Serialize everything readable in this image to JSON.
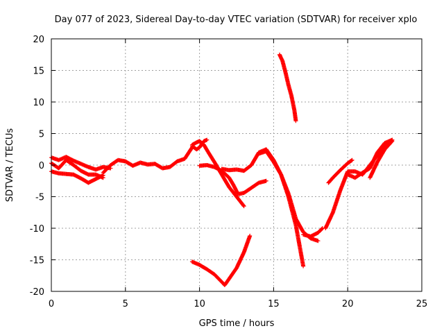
{
  "chart_data": {
    "type": "scatter",
    "title": "Day 077 of 2023, Sidereal Day-to-day VTEC variation (SDTVAR) for receiver xplo",
    "xlabel": "GPS time / hours",
    "ylabel": "SDTVAR / TECUs",
    "xlim": [
      0,
      25
    ],
    "ylim": [
      -20,
      20
    ],
    "x_ticks": [
      0,
      5,
      10,
      15,
      20,
      25
    ],
    "y_ticks": [
      -20,
      -15,
      -10,
      -5,
      0,
      5,
      10,
      15,
      20
    ],
    "x_tick_labels": [
      "0",
      "5",
      "10",
      "15",
      "20",
      "25"
    ],
    "y_tick_labels": [
      "-20",
      "-15",
      "-10",
      "-5",
      "0",
      "5",
      "10",
      "15",
      "20"
    ],
    "grid": true,
    "marker": "plus",
    "color": "#ff0000",
    "series": [
      {
        "x": [
          0.0,
          0.5,
          1.0,
          1.5,
          2.0,
          2.5,
          3.0,
          3.5,
          4.0
        ],
        "y": [
          1.2,
          0.8,
          1.3,
          0.7,
          0.2,
          -0.3,
          -0.7,
          -0.3,
          -0.5
        ]
      },
      {
        "x": [
          0.0,
          0.5,
          1.0,
          1.5,
          2.0,
          2.5,
          3.0,
          3.5
        ],
        "y": [
          0.3,
          -0.5,
          0.8,
          0.0,
          -0.9,
          -1.5,
          -1.5,
          -2.0
        ]
      },
      {
        "x": [
          0.0,
          0.5,
          1.0,
          1.5,
          2.0,
          2.5,
          3.0,
          3.5
        ],
        "y": [
          -1.0,
          -1.3,
          -1.4,
          -1.5,
          -2.1,
          -2.8,
          -2.2,
          -1.6
        ]
      },
      {
        "x": [
          3.5,
          4.0,
          4.5,
          5.0,
          5.5,
          6.0,
          6.5,
          7.0,
          7.5,
          8.0,
          8.5,
          9.0,
          9.5
        ],
        "y": [
          -1.2,
          0.0,
          0.8,
          0.6,
          -0.1,
          0.4,
          0.1,
          0.2,
          -0.5,
          -0.3,
          0.6,
          1.0,
          2.8
        ]
      },
      {
        "x": [
          9.5,
          9.8,
          10.0,
          10.3,
          10.6,
          11.0,
          11.5,
          12.0,
          12.5,
          13.0
        ],
        "y": [
          3.2,
          3.6,
          3.8,
          3.2,
          2.0,
          0.5,
          -1.5,
          -3.5,
          -5.0,
          -6.5
        ]
      },
      {
        "x": [
          9.5,
          9.8,
          10.0,
          10.3,
          10.5
        ],
        "y": [
          3.0,
          2.5,
          2.8,
          3.8,
          4.0
        ]
      },
      {
        "x": [
          10.0,
          10.5,
          11.0,
          11.5,
          12.0,
          12.3,
          12.6,
          13.0,
          13.5,
          14.0,
          14.5
        ],
        "y": [
          -0.1,
          0.0,
          -0.3,
          -0.9,
          -2.0,
          -3.2,
          -4.6,
          -4.4,
          -3.6,
          -2.8,
          -2.5
        ]
      },
      {
        "x": [
          11.5,
          12.0,
          12.5,
          13.0,
          13.5,
          14.0,
          14.5,
          15.0,
          15.5,
          16.0,
          16.5,
          17.0
        ],
        "y": [
          -0.6,
          -0.8,
          -0.7,
          -0.9,
          0.0,
          2.0,
          2.5,
          0.8,
          -1.5,
          -5.0,
          -9.5,
          -16.0
        ]
      },
      {
        "x": [
          14.0,
          14.5,
          15.0,
          15.5,
          16.0,
          16.5,
          17.0,
          17.5,
          18.0
        ],
        "y": [
          1.8,
          2.2,
          0.5,
          -1.5,
          -4.5,
          -8.5,
          -10.6,
          -11.6,
          -12.0
        ]
      },
      {
        "x": [
          17.0,
          17.5,
          18.0,
          18.3
        ],
        "y": [
          -11.0,
          -11.3,
          -10.7,
          -10.0
        ]
      },
      {
        "x": [
          9.5,
          10.0,
          10.5,
          11.0,
          11.5,
          11.7,
          12.0,
          12.5,
          13.0,
          13.4
        ],
        "y": [
          -15.3,
          -15.8,
          -16.5,
          -17.3,
          -18.5,
          -19.0,
          -18.0,
          -16.3,
          -13.8,
          -11.2
        ]
      },
      {
        "x": [
          15.4,
          15.6,
          15.8,
          16.0,
          16.2,
          16.4,
          16.5
        ],
        "y": [
          17.5,
          16.5,
          14.7,
          12.7,
          11.0,
          8.7,
          7.0
        ]
      },
      {
        "x": [
          18.5,
          19.0,
          19.5,
          20.0,
          20.5,
          21.0,
          21.5,
          22.0,
          22.5,
          23.0
        ],
        "y": [
          -10.0,
          -7.5,
          -4.0,
          -1.0,
          -1.0,
          -1.5,
          0.0,
          1.5,
          3.0,
          4.0
        ]
      },
      {
        "x": [
          18.7,
          19.0,
          19.5,
          20.0,
          20.3
        ],
        "y": [
          -2.8,
          -2.0,
          -0.8,
          0.3,
          0.8
        ]
      },
      {
        "x": [
          20.0,
          20.5,
          21.0,
          21.5,
          22.0,
          22.5,
          23.0
        ],
        "y": [
          -1.5,
          -2.0,
          -1.2,
          -0.5,
          2.0,
          3.5,
          4.0
        ]
      },
      {
        "x": [
          21.5,
          22.0,
          22.5,
          23.0
        ],
        "y": [
          -2.0,
          0.5,
          2.5,
          3.8
        ]
      }
    ]
  }
}
